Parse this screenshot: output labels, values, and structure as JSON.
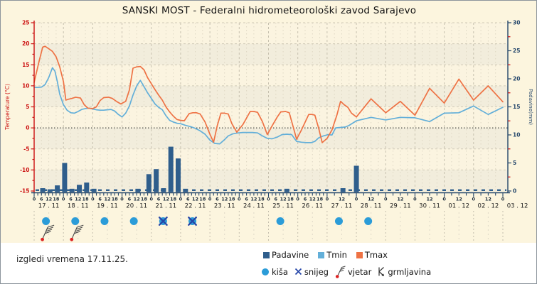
{
  "title": "SANSKI MOST - Federalni hidrometeorološki zavod Sarajevo",
  "footer_note": "izgledi vremena 17.11.25.",
  "colors": {
    "tmax": "#EE7244",
    "tmin": "#63AFD9",
    "padavine": "#2F5E8C",
    "kisa": "#2B9CD8",
    "snijeg": "#2546A8",
    "axis_red": "#CC1111",
    "axis_navy": "#24466B",
    "tick_label_dark": "#1A2B3C",
    "date_label": "#222222",
    "zero_line": "#1A1A1A",
    "vjetar_stroke": "#4A4A4A",
    "vjetar_dot": "#DD2222",
    "grmljavina": "#333333"
  },
  "legend": {
    "series": [
      {
        "label": "Padavine"
      },
      {
        "label": "Tmin"
      },
      {
        "label": "Tmax"
      }
    ],
    "symbols": [
      {
        "label": "kiša"
      },
      {
        "label": "snijeg"
      },
      {
        "label": "vjetar"
      },
      {
        "label": "grmljavina"
      }
    ]
  },
  "chart_data": {
    "type": "line+bar",
    "title": "SANSKI MOST - Federalni hidrometeorološki zavod Sarajevo",
    "y_left": {
      "label": "Temperature (°C)",
      "min": -15,
      "max": 25,
      "step": 5
    },
    "y_right": {
      "label": "Padavine(mm)",
      "min": 0,
      "max": 30,
      "step": 5
    },
    "x_total_hours": 384,
    "days": [
      "17 . 11",
      "18 . 11",
      "19 . 11",
      "20 . 11",
      "21 . 11",
      "22 . 11",
      "23 . 11",
      "24 . 11",
      "25 . 11",
      "26 . 11",
      "27 . 11",
      "28 . 11",
      "29 . 11",
      "30 . 11",
      "01 . 12",
      "02 . 12",
      "03 . 12"
    ],
    "hour_labels_detailed": [
      6,
      12,
      18
    ],
    "hour_labels_sparse": [
      12
    ],
    "detailed_until_day": 10,
    "series": [
      {
        "name": "Tmin",
        "points": [
          [
            0,
            9.6
          ],
          [
            3,
            9.6
          ],
          [
            6,
            9.7
          ],
          [
            9,
            10.3
          ],
          [
            12,
            12.0
          ],
          [
            15,
            14.3
          ],
          [
            17,
            13.5
          ],
          [
            19,
            11.0
          ],
          [
            21,
            8.0
          ],
          [
            24,
            5.5
          ],
          [
            27,
            4.2
          ],
          [
            30,
            3.6
          ],
          [
            33,
            3.5
          ],
          [
            36,
            3.9
          ],
          [
            39,
            4.4
          ],
          [
            42,
            4.6
          ],
          [
            45,
            4.7
          ],
          [
            48,
            4.5
          ],
          [
            51,
            4.3
          ],
          [
            54,
            4.2
          ],
          [
            57,
            4.2
          ],
          [
            60,
            4.3
          ],
          [
            63,
            4.4
          ],
          [
            66,
            4.0
          ],
          [
            69,
            3.2
          ],
          [
            72,
            2.6
          ],
          [
            75,
            3.5
          ],
          [
            78,
            5.2
          ],
          [
            81,
            7.8
          ],
          [
            84,
            10.0
          ],
          [
            87,
            11.3
          ],
          [
            90,
            9.8
          ],
          [
            93,
            8.3
          ],
          [
            96,
            7.0
          ],
          [
            99,
            5.7
          ],
          [
            102,
            4.9
          ],
          [
            105,
            4.3
          ],
          [
            108,
            2.9
          ],
          [
            111,
            1.8
          ],
          [
            114,
            1.4
          ],
          [
            117,
            1.1
          ],
          [
            120,
            1.0
          ],
          [
            124,
            0.6
          ],
          [
            128,
            0.3
          ],
          [
            132,
            -0.1
          ],
          [
            136,
            -0.7
          ],
          [
            140,
            -1.5
          ],
          [
            144,
            -2.9
          ],
          [
            148,
            -3.7
          ],
          [
            152,
            -3.8
          ],
          [
            156,
            -2.8
          ],
          [
            159,
            -1.9
          ],
          [
            163,
            -1.4
          ],
          [
            167,
            -1.2
          ],
          [
            171,
            -1.1
          ],
          [
            175,
            -1.1
          ],
          [
            179,
            -1.1
          ],
          [
            183,
            -1.2
          ],
          [
            187,
            -1.9
          ],
          [
            191,
            -2.5
          ],
          [
            195,
            -2.6
          ],
          [
            199,
            -2.2
          ],
          [
            203,
            -1.6
          ],
          [
            207,
            -1.5
          ],
          [
            211,
            -1.6
          ],
          [
            215,
            -3.2
          ],
          [
            219,
            -3.4
          ],
          [
            223,
            -3.5
          ],
          [
            227,
            -3.5
          ],
          [
            230,
            -3.2
          ],
          [
            233,
            -2.4
          ],
          [
            237,
            -1.9
          ],
          [
            241,
            -1.6
          ],
          [
            244,
            -1.7
          ],
          [
            247,
            0.0
          ],
          [
            251,
            0.1
          ],
          [
            255,
            0.2
          ],
          [
            258,
            0.6
          ],
          [
            264,
            1.7
          ],
          [
            276,
            2.5
          ],
          [
            288,
            1.9
          ],
          [
            300,
            2.5
          ],
          [
            312,
            2.4
          ],
          [
            324,
            1.5
          ],
          [
            336,
            3.5
          ],
          [
            348,
            3.6
          ],
          [
            360,
            5.2
          ],
          [
            372,
            3.2
          ],
          [
            384,
            4.9
          ]
        ]
      },
      {
        "name": "Tmax",
        "points": [
          [
            0,
            10.8
          ],
          [
            4,
            15.8
          ],
          [
            7,
            19.2
          ],
          [
            9,
            19.4
          ],
          [
            12,
            18.8
          ],
          [
            15,
            18.2
          ],
          [
            18,
            16.9
          ],
          [
            21,
            14.5
          ],
          [
            24,
            11.0
          ],
          [
            26,
            6.6
          ],
          [
            28,
            6.8
          ],
          [
            31,
            7.0
          ],
          [
            34,
            7.3
          ],
          [
            38,
            7.1
          ],
          [
            41,
            5.5
          ],
          [
            44,
            4.7
          ],
          [
            48,
            4.6
          ],
          [
            51,
            5.0
          ],
          [
            54,
            6.5
          ],
          [
            57,
            7.2
          ],
          [
            61,
            7.3
          ],
          [
            64,
            7.0
          ],
          [
            68,
            6.2
          ],
          [
            71,
            5.7
          ],
          [
            75,
            6.3
          ],
          [
            78,
            9.0
          ],
          [
            81,
            14.2
          ],
          [
            84,
            14.5
          ],
          [
            87,
            14.6
          ],
          [
            90,
            13.8
          ],
          [
            93,
            11.9
          ],
          [
            96,
            10.5
          ],
          [
            99,
            9.1
          ],
          [
            102,
            7.8
          ],
          [
            105,
            6.6
          ],
          [
            108,
            5.0
          ],
          [
            111,
            3.8
          ],
          [
            114,
            2.8
          ],
          [
            117,
            2.0
          ],
          [
            120,
            1.8
          ],
          [
            123,
            1.7
          ],
          [
            127,
            3.4
          ],
          [
            130,
            3.6
          ],
          [
            133,
            3.6
          ],
          [
            136,
            3.3
          ],
          [
            140,
            1.4
          ],
          [
            144,
            -1.5
          ],
          [
            147,
            -3.4
          ],
          [
            150,
            0.5
          ],
          [
            153,
            3.5
          ],
          [
            156,
            3.5
          ],
          [
            159,
            3.3
          ],
          [
            162,
            1.0
          ],
          [
            166,
            -1.0
          ],
          [
            171,
            0.8
          ],
          [
            177,
            3.9
          ],
          [
            180,
            3.9
          ],
          [
            183,
            3.7
          ],
          [
            187,
            1.5
          ],
          [
            191,
            -1.6
          ],
          [
            195,
            0.5
          ],
          [
            199,
            2.5
          ],
          [
            202,
            3.8
          ],
          [
            206,
            3.9
          ],
          [
            209,
            3.6
          ],
          [
            212,
            0.5
          ],
          [
            215,
            -2.7
          ],
          [
            219,
            -0.5
          ],
          [
            225,
            3.2
          ],
          [
            228,
            3.2
          ],
          [
            230,
            3.0
          ],
          [
            233,
            0.0
          ],
          [
            236,
            -3.5
          ],
          [
            240,
            -2.5
          ],
          [
            244,
            -0.5
          ],
          [
            248,
            3.0
          ],
          [
            251,
            6.3
          ],
          [
            254,
            5.5
          ],
          [
            257,
            4.9
          ],
          [
            260,
            3.5
          ],
          [
            264,
            2.6
          ],
          [
            276,
            6.9
          ],
          [
            288,
            3.6
          ],
          [
            300,
            6.3
          ],
          [
            312,
            3.0
          ],
          [
            324,
            9.4
          ],
          [
            336,
            5.9
          ],
          [
            348,
            11.6
          ],
          [
            360,
            6.6
          ],
          [
            372,
            10.0
          ],
          [
            384,
            6.2
          ]
        ]
      }
    ],
    "bars": {
      "name": "Padavine",
      "values": [
        [
          7,
          0.5
        ],
        [
          13,
          0.3
        ],
        [
          19,
          1.0
        ],
        [
          25,
          5.0
        ],
        [
          31,
          0.4
        ],
        [
          37,
          1.1
        ],
        [
          43,
          1.5
        ],
        [
          49,
          0.4
        ],
        [
          85,
          0.4
        ],
        [
          94,
          3.0
        ],
        [
          100,
          3.9
        ],
        [
          106,
          0.5
        ],
        [
          112,
          7.9
        ],
        [
          118,
          5.8
        ],
        [
          124,
          0.4
        ],
        [
          207,
          0.4
        ],
        [
          253,
          0.5
        ],
        [
          264,
          4.5
        ]
      ]
    },
    "day_icons": [
      {
        "day": "17 . 11",
        "rain": true,
        "snow": false,
        "wind": true
      },
      {
        "day": "18 . 11",
        "rain": true,
        "snow": false,
        "wind": true
      },
      {
        "day": "19 . 11",
        "rain": true,
        "snow": false,
        "wind": false
      },
      {
        "day": "20 . 11",
        "rain": true,
        "snow": false,
        "wind": false
      },
      {
        "day": "21 . 11",
        "rain": true,
        "snow": true,
        "wind": false
      },
      {
        "day": "22 . 11",
        "rain": true,
        "snow": true,
        "wind": false
      },
      {
        "day": "23 . 11",
        "rain": false,
        "snow": false,
        "wind": false
      },
      {
        "day": "24 . 11",
        "rain": false,
        "snow": false,
        "wind": false
      },
      {
        "day": "25 . 11",
        "rain": true,
        "snow": false,
        "wind": false
      },
      {
        "day": "26 . 11",
        "rain": false,
        "snow": false,
        "wind": false
      },
      {
        "day": "27 . 11",
        "rain": true,
        "snow": false,
        "wind": false
      },
      {
        "day": "28 . 11",
        "rain": true,
        "snow": false,
        "wind": false
      },
      {
        "day": "29 . 11",
        "rain": false,
        "snow": false,
        "wind": false
      },
      {
        "day": "30 . 11",
        "rain": false,
        "snow": false,
        "wind": false
      },
      {
        "day": "01 . 12",
        "rain": false,
        "snow": false,
        "wind": false
      },
      {
        "day": "02 . 12",
        "rain": false,
        "snow": false,
        "wind": false
      }
    ]
  }
}
